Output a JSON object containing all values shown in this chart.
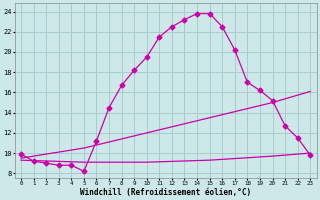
{
  "xlabel": "Windchill (Refroidissement éolien,°C)",
  "bg_color": "#cce8e8",
  "grid_color": "#aacccc",
  "line_color": "#cc00aa",
  "xlim": [
    -0.5,
    23.5
  ],
  "ylim": [
    7.5,
    24.8
  ],
  "xticks": [
    0,
    1,
    2,
    3,
    4,
    5,
    6,
    7,
    8,
    9,
    10,
    11,
    12,
    13,
    14,
    15,
    16,
    17,
    18,
    19,
    20,
    21,
    22,
    23
  ],
  "yticks": [
    8,
    10,
    12,
    14,
    16,
    18,
    20,
    22,
    24
  ],
  "curve1_x": [
    0,
    1,
    2,
    3,
    4,
    5,
    6,
    7,
    8,
    9,
    10,
    11,
    12,
    13,
    14,
    15,
    16,
    17,
    18,
    19,
    20,
    21,
    22,
    23
  ],
  "curve1_y": [
    9.9,
    9.2,
    9.0,
    8.8,
    8.8,
    8.2,
    11.2,
    14.5,
    16.7,
    18.2,
    19.5,
    21.5,
    22.5,
    23.2,
    23.8,
    23.8,
    22.5,
    20.2,
    17.0,
    16.2,
    15.2,
    12.7,
    11.5,
    9.8
  ],
  "curve2_x": [
    0,
    5,
    10,
    15,
    20,
    23
  ],
  "curve2_y": [
    9.5,
    10.5,
    12.0,
    13.5,
    15.0,
    16.1
  ],
  "curve3_x": [
    0,
    5,
    10,
    15,
    20,
    23
  ],
  "curve3_y": [
    9.3,
    9.1,
    9.1,
    9.3,
    9.7,
    10.0
  ],
  "marker": "D",
  "markersize": 2.5,
  "linewidth": 0.9
}
